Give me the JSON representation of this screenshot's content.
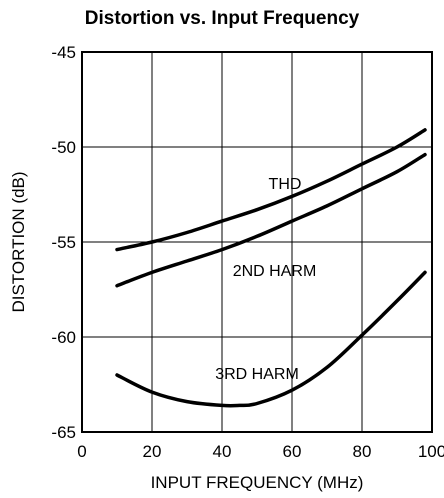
{
  "chart_data": {
    "type": "line",
    "title": "Distortion vs. Input Frequency",
    "xlabel": "INPUT FREQUENCY (MHz)",
    "ylabel": "DISTORTION (dB)",
    "xlim": [
      0,
      100
    ],
    "ylim": [
      -65,
      -45
    ],
    "x_ticks": [
      0,
      20,
      40,
      60,
      80,
      100
    ],
    "y_ticks": [
      -65,
      -60,
      -55,
      -50,
      -45
    ],
    "x_tick_labels": [
      "0",
      "20",
      "40",
      "60",
      "80",
      "100"
    ],
    "y_tick_labels": [
      "-65",
      "-60",
      "-55",
      "-50",
      "-45"
    ],
    "grid": true,
    "legend": "none",
    "series": [
      {
        "name": "THD",
        "x": [
          10,
          20,
          30,
          40,
          50,
          60,
          70,
          80,
          90,
          98
        ],
        "y": [
          -55.4,
          -55.0,
          -54.5,
          -53.9,
          -53.3,
          -52.6,
          -51.8,
          -50.9,
          -50.0,
          -49.1
        ]
      },
      {
        "name": "2ND HARM",
        "x": [
          10,
          20,
          30,
          40,
          50,
          60,
          70,
          80,
          90,
          98
        ],
        "y": [
          -57.3,
          -56.6,
          -56.0,
          -55.4,
          -54.7,
          -53.9,
          -53.1,
          -52.2,
          -51.3,
          -50.4
        ]
      },
      {
        "name": "3RD HARM",
        "x": [
          10,
          20,
          30,
          40,
          45,
          50,
          60,
          70,
          80,
          90,
          98
        ],
        "y": [
          -62.0,
          -62.9,
          -63.4,
          -63.6,
          -63.6,
          -63.5,
          -62.8,
          -61.6,
          -59.9,
          -58.1,
          -56.6
        ]
      }
    ],
    "annotations": [
      {
        "text": "THD",
        "series": "THD"
      },
      {
        "text": "2ND HARM",
        "series": "2ND HARM"
      },
      {
        "text": "3RD HARM",
        "series": "3RD HARM"
      }
    ]
  }
}
